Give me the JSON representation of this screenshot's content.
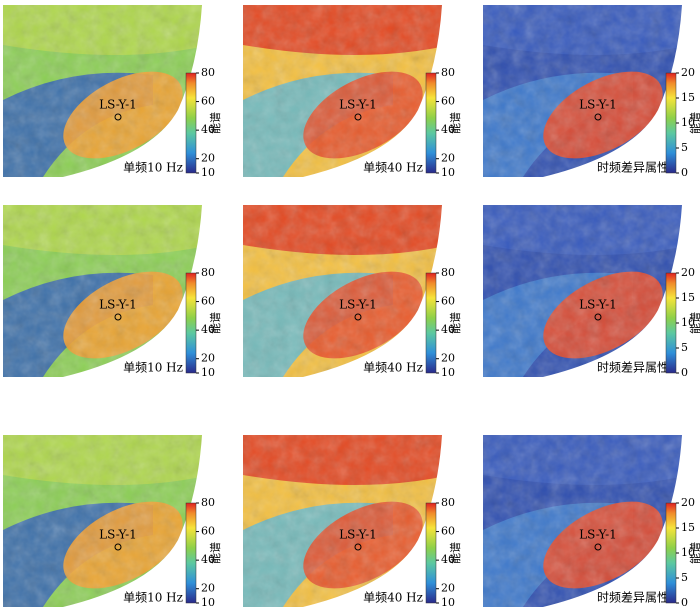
{
  "panels": [
    {
      "label": "单频10 Hz",
      "well": "LS-Y-1",
      "colorbar": {
        "title": "能谱",
        "lim": [
          10,
          80
        ],
        "ticks": [
          10,
          20,
          40,
          60,
          80
        ]
      }
    },
    {
      "label": "单频40 Hz",
      "well": "LS-Y-1",
      "colorbar": {
        "title": "能谱",
        "lim": [
          10,
          80
        ],
        "ticks": [
          10,
          20,
          40,
          60,
          80
        ]
      }
    },
    {
      "label": "时频差异属性",
      "well": "LS-Y-1",
      "colorbar": {
        "title": "能谱",
        "lim": [
          0,
          20
        ],
        "ticks": [
          0,
          5,
          10,
          15,
          20
        ]
      }
    },
    {
      "label": "单频10 Hz",
      "well": "LS-Y-1",
      "colorbar": {
        "title": "能谱",
        "lim": [
          10,
          80
        ],
        "ticks": [
          10,
          20,
          40,
          60,
          80
        ]
      }
    },
    {
      "label": "单频40 Hz",
      "well": "LS-Y-1",
      "colorbar": {
        "title": "能谱",
        "lim": [
          10,
          80
        ],
        "ticks": [
          10,
          20,
          40,
          60,
          80
        ]
      }
    },
    {
      "label": "时频差异属性",
      "well": "LS-Y-1",
      "colorbar": {
        "title": "能谱",
        "lim": [
          0,
          20
        ],
        "ticks": [
          0,
          5,
          10,
          15,
          20
        ]
      }
    },
    {
      "label": "单频10 Hz",
      "well": "LS-Y-1",
      "colorbar": {
        "title": "能谱",
        "lim": [
          10,
          80
        ],
        "ticks": [
          10,
          20,
          40,
          60,
          80
        ]
      }
    },
    {
      "label": "单频40 Hz",
      "well": "LS-Y-1",
      "colorbar": {
        "title": "能谱",
        "lim": [
          10,
          80
        ],
        "ticks": [
          10,
          20,
          40,
          60,
          80
        ]
      }
    },
    {
      "label": "时频差异属性",
      "well": "LS-Y-1",
      "colorbar": {
        "title": "能谱",
        "lim": [
          0,
          20
        ],
        "ticks": [
          0,
          5,
          10,
          15,
          20
        ]
      }
    }
  ]
}
